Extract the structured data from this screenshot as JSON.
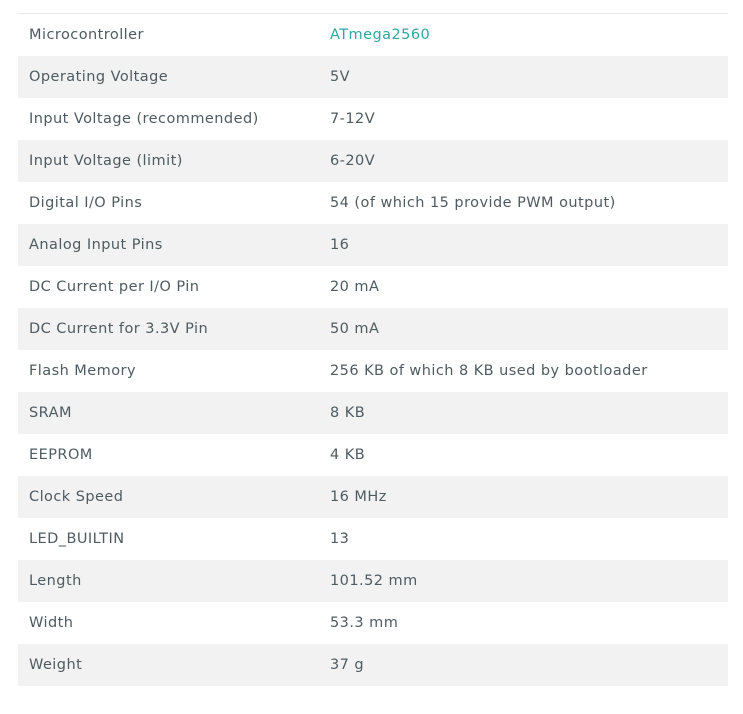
{
  "colors": {
    "text": "#4e5b61",
    "link": "#2fa7a0",
    "row_alt": "#f2f2f2",
    "row": "#ffffff"
  },
  "specs": [
    {
      "label": "Microcontroller",
      "value": "ATmega2560",
      "link": true
    },
    {
      "label": "Operating Voltage",
      "value": "5V"
    },
    {
      "label": "Input Voltage (recommended)",
      "value": "7-12V"
    },
    {
      "label": "Input Voltage (limit)",
      "value": "6-20V"
    },
    {
      "label": "Digital I/O Pins",
      "value": "54 (of which 15 provide PWM output)"
    },
    {
      "label": "Analog Input Pins",
      "value": "16"
    },
    {
      "label": "DC Current per I/O Pin",
      "value": "20 mA"
    },
    {
      "label": "DC Current for 3.3V Pin",
      "value": "50 mA"
    },
    {
      "label": "Flash Memory",
      "value": "256 KB of which 8 KB used by bootloader"
    },
    {
      "label": "SRAM",
      "value": "8 KB"
    },
    {
      "label": "EEPROM",
      "value": "4 KB"
    },
    {
      "label": "Clock Speed",
      "value": "16 MHz"
    },
    {
      "label": "LED_BUILTIN",
      "value": "13"
    },
    {
      "label": "Length",
      "value": "101.52 mm"
    },
    {
      "label": "Width",
      "value": "53.3 mm"
    },
    {
      "label": "Weight",
      "value": "37 g"
    }
  ]
}
